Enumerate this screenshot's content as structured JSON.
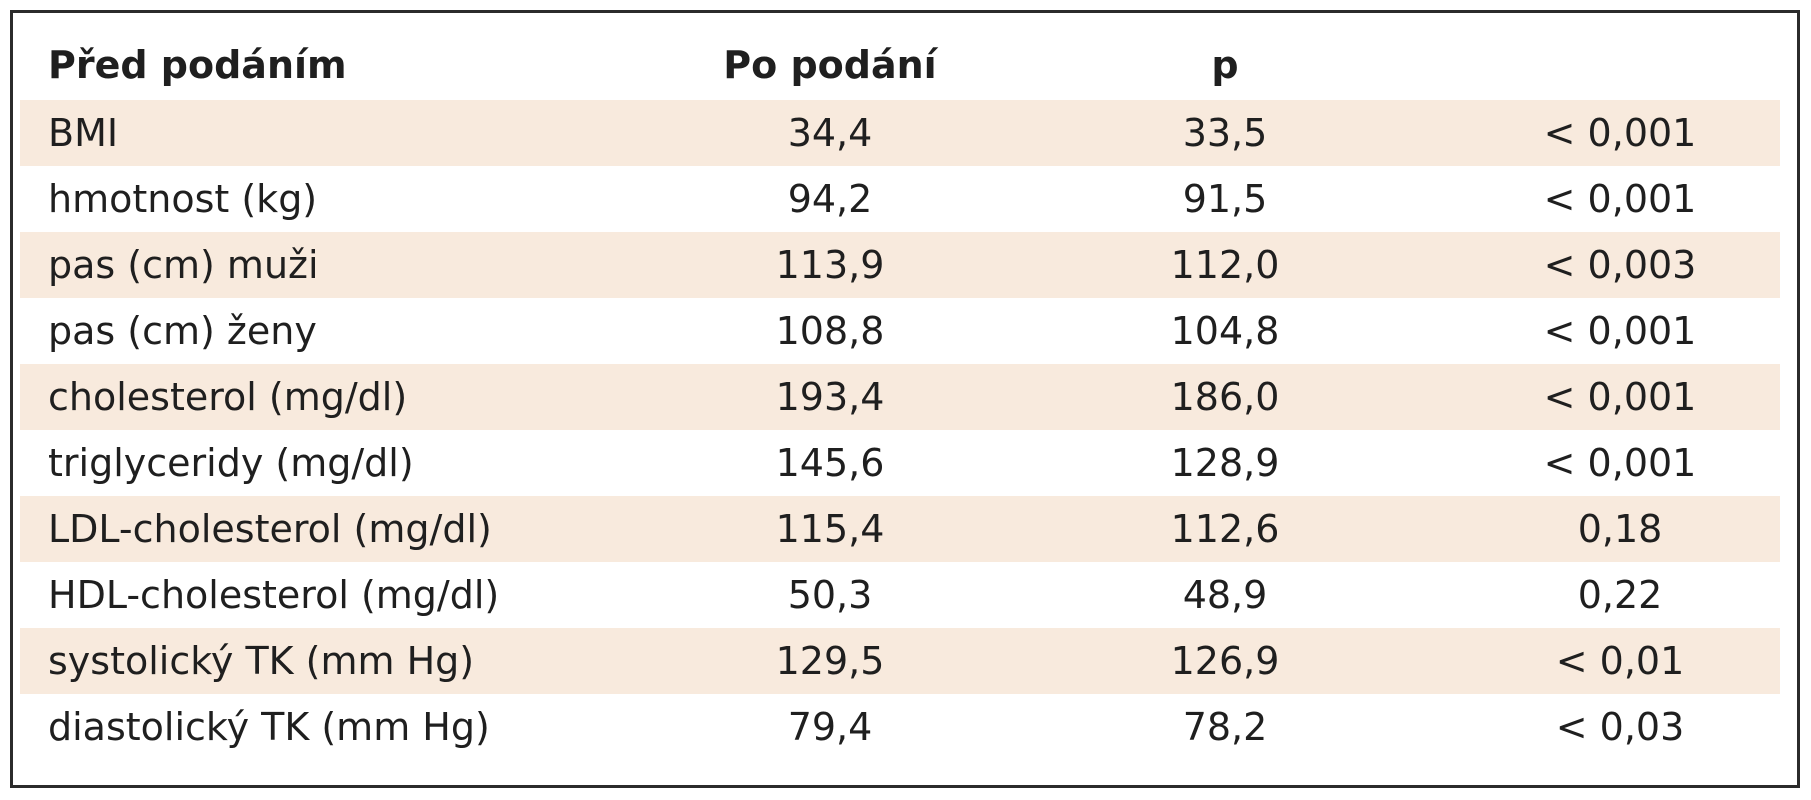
{
  "table": {
    "headers": [
      "Před podáním",
      "Po podání",
      "p"
    ],
    "rows": [
      {
        "label": "BMI",
        "before": "34,4",
        "after": "33,5",
        "p": "< 0,001",
        "shaded": true
      },
      {
        "label": "hmotnost (kg)",
        "before": "94,2",
        "after": "91,5",
        "p": "< 0,001",
        "shaded": false
      },
      {
        "label": "pas (cm) muži",
        "before": "113,9",
        "after": "112,0",
        "p": "< 0,003",
        "shaded": true
      },
      {
        "label": "pas (cm) ženy",
        "before": "108,8",
        "after": "104,8",
        "p": "< 0,001",
        "shaded": false
      },
      {
        "label": "cholesterol (mg/dl)",
        "before": "193,4",
        "after": "186,0",
        "p": "< 0,001",
        "shaded": true
      },
      {
        "label": "triglyceridy (mg/dl)",
        "before": "145,6",
        "after": "128,9",
        "p": "< 0,001",
        "shaded": false
      },
      {
        "label": "LDL-cholesterol (mg/dl)",
        "before": "115,4",
        "after": "112,6",
        "p": "0,18",
        "shaded": true
      },
      {
        "label": "HDL-cholesterol (mg/dl)",
        "before": "50,3",
        "after": "48,9",
        "p": "0,22",
        "shaded": false
      },
      {
        "label": "systolický TK (mm Hg)",
        "before": "129,5",
        "after": "126,9",
        "p": "< 0,01",
        "shaded": true
      },
      {
        "label": "diastolický TK (mm Hg)",
        "before": "79,4",
        "after": "78,2",
        "p": "< 0,03",
        "shaded": false
      }
    ]
  },
  "colors": {
    "shaded_row": "#f8eadd",
    "border": "#2b2b2b",
    "text": "#1f1f1f"
  }
}
